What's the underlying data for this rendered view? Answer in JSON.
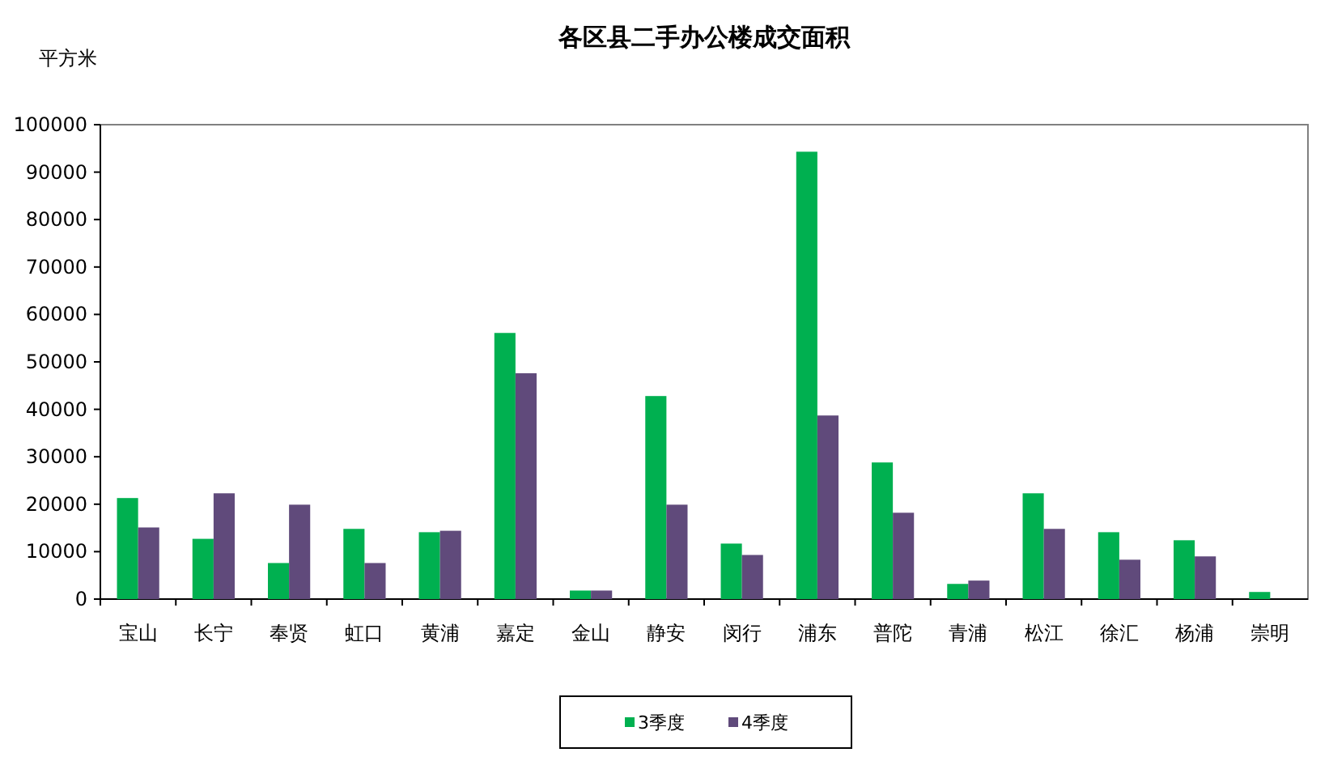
{
  "chart_data": {
    "type": "bar",
    "title": "各区县二手办公楼成交面积",
    "ylabel": "平方米",
    "categories": [
      "宝山",
      "长宁",
      "奉贤",
      "虹口",
      "黄浦",
      "嘉定",
      "金山",
      "静安",
      "闵行",
      "浦东",
      "普陀",
      "青浦",
      "松江",
      "徐汇",
      "杨浦",
      "崇明"
    ],
    "series": [
      {
        "name": "3季度",
        "color": "#00b050",
        "values": [
          21300,
          12700,
          7600,
          14800,
          14100,
          56100,
          1800,
          42800,
          11700,
          94300,
          28800,
          3200,
          22300,
          14100,
          12400,
          1500
        ]
      },
      {
        "name": "4季度",
        "color": "#604a7b",
        "values": [
          15100,
          22300,
          19900,
          7600,
          14400,
          47600,
          1800,
          19900,
          9300,
          38700,
          18200,
          3900,
          14800,
          8300,
          9000,
          null
        ]
      }
    ],
    "ylim": [
      0,
      100000
    ],
    "yticks": [
      0,
      10000,
      20000,
      30000,
      40000,
      50000,
      60000,
      70000,
      80000,
      90000,
      100000
    ],
    "grid": false,
    "legend": "bottom"
  }
}
